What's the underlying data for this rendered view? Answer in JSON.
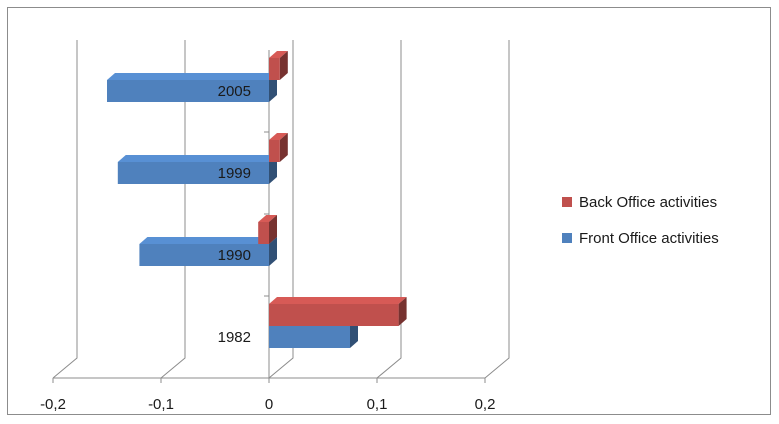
{
  "chart_data": {
    "type": "bar",
    "orientation": "horizontal",
    "style": "3d",
    "categories": [
      "1982",
      "1990",
      "1999",
      "2005"
    ],
    "series": [
      {
        "name": "Front Office activities",
        "color": "#4F81BD",
        "values": [
          0.075,
          -0.12,
          -0.14,
          -0.15
        ]
      },
      {
        "name": "Back Office activities",
        "color": "#C0504D",
        "values": [
          0.12,
          -0.01,
          0.01,
          0.01
        ]
      }
    ],
    "x_ticks": [
      "-0,2",
      "-0,1",
      "0",
      "0,1",
      "0,2"
    ],
    "x_tick_values": [
      -0.2,
      -0.1,
      0,
      0.1,
      0.2
    ],
    "xlim": [
      -0.2,
      0.2
    ],
    "grid": "vertical",
    "legend_position": "right",
    "title": "",
    "xlabel": "",
    "ylabel": ""
  },
  "legend": {
    "items": [
      {
        "label": "Back Office activities",
        "color": "#C0504D"
      },
      {
        "label": "Front Office activities",
        "color": "#4F81BD"
      }
    ]
  }
}
